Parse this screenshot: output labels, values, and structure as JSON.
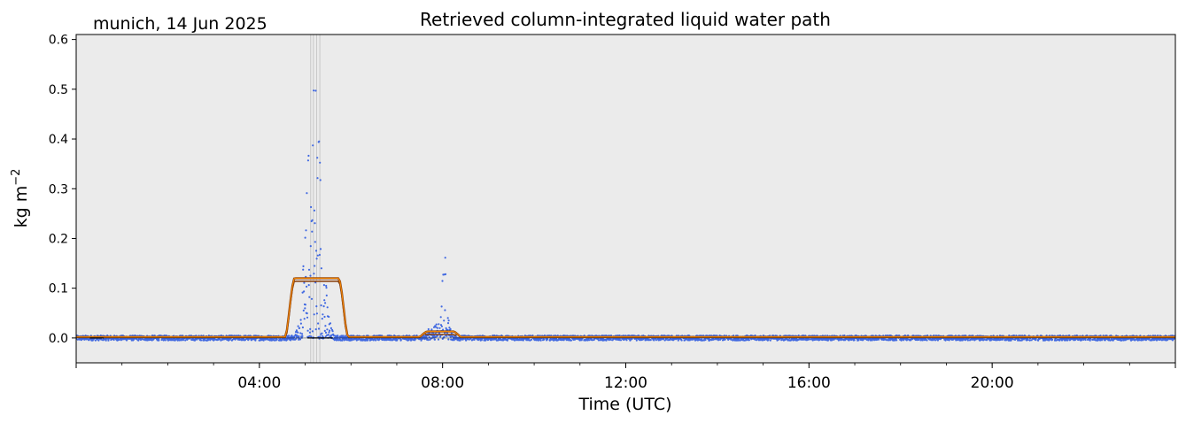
{
  "chart_data": {
    "type": "scatter",
    "title": "Retrieved column-integrated liquid water path",
    "subtitle": "munich, 14 Jun 2025",
    "xlabel": "Time (UTC)",
    "ylabel_base": "kg m",
    "ylabel_exp": "−2",
    "xlim": [
      0,
      24
    ],
    "ylim": [
      -0.05,
      0.61
    ],
    "y_ticks": [
      0.0,
      0.1,
      0.2,
      0.3,
      0.4,
      0.5,
      0.6
    ],
    "y_tick_labels": [
      "0.0",
      "0.1",
      "0.2",
      "0.3",
      "0.4",
      "0.5",
      "0.6"
    ],
    "x_ticks": [
      4,
      8,
      12,
      16,
      20
    ],
    "x_tick_labels": [
      "04:00",
      "08:00",
      "12:00",
      "16:00",
      "20:00"
    ],
    "grid": false,
    "background_color": "#ebebeb",
    "series": [
      {
        "kind": "points",
        "color": "#4169e1",
        "bursts": [
          {
            "center": 5.2,
            "width": 0.35,
            "peak": 0.61
          },
          {
            "center": 8.05,
            "width": 0.15,
            "peak": 0.19
          },
          {
            "center": 7.8,
            "width": 0.25,
            "peak": 0.03
          }
        ],
        "baseline_noise": 0.005
      },
      {
        "kind": "envelope",
        "color": "#8b4513",
        "inner_color": "#ff8c00",
        "plateaus": [
          {
            "start": 4.55,
            "end": 5.95,
            "value": 0.12
          },
          {
            "start": 7.45,
            "end": 8.45,
            "value": 0.013
          }
        ],
        "baseline": 0.002
      }
    ],
    "zero_line_segments": [
      [
        0.3,
        0.6
      ],
      [
        5.05,
        5.6
      ]
    ],
    "flag_lines": [
      5.12,
      5.18,
      5.25,
      5.32
    ]
  }
}
